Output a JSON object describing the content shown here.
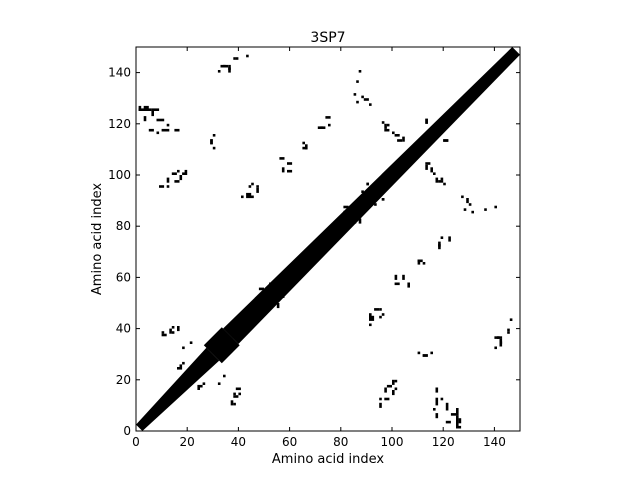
{
  "chart_data": {
    "type": "heatmap",
    "title": "3SP7",
    "xlabel": "Amino acid index",
    "ylabel": "Amino acid index",
    "xlim": [
      0,
      150
    ],
    "ylim": [
      0,
      150
    ],
    "xticks": [
      0,
      20,
      40,
      60,
      80,
      100,
      120,
      140
    ],
    "yticks": [
      0,
      20,
      40,
      60,
      80,
      100,
      120,
      140
    ],
    "grid": false,
    "colors": {
      "contact": "#000000",
      "background": "#ffffff"
    },
    "diagonal_band": [
      {
        "from": 0,
        "to": 30,
        "halfwidth": 2.5
      },
      {
        "from": 30,
        "to": 37,
        "halfwidth": 3.5
      },
      {
        "from": 37,
        "to": 150,
        "halfwidth": 3
      }
    ],
    "contacts": [
      [
        1,
        125,
        5,
        1
      ],
      [
        8,
        121,
        3,
        1
      ],
      [
        6,
        125,
        3,
        1
      ],
      [
        10,
        117,
        3,
        1
      ],
      [
        15,
        117,
        2,
        1
      ],
      [
        12,
        95,
        1,
        1
      ],
      [
        15,
        97,
        2,
        1
      ],
      [
        16,
        101,
        1,
        1
      ],
      [
        18,
        100,
        2,
        1
      ],
      [
        19,
        101,
        1,
        1
      ],
      [
        29,
        112,
        1,
        2
      ],
      [
        30,
        110,
        1,
        1
      ],
      [
        33,
        142,
        2,
        1
      ],
      [
        36,
        141,
        1,
        2
      ],
      [
        39,
        145,
        1,
        1
      ],
      [
        32,
        140,
        1,
        1
      ],
      [
        41,
        91,
        1,
        1
      ],
      [
        43,
        92,
        2,
        1
      ],
      [
        44,
        95,
        1,
        1
      ],
      [
        47,
        95,
        1,
        1
      ],
      [
        59,
        101,
        2,
        1
      ],
      [
        59,
        104,
        2,
        1
      ],
      [
        65,
        110,
        2,
        1
      ],
      [
        65,
        112,
        1,
        1
      ],
      [
        71,
        118,
        2,
        1
      ],
      [
        75,
        119,
        1,
        1
      ],
      [
        75,
        122,
        1,
        1
      ],
      [
        86,
        128,
        1,
        1
      ],
      [
        88,
        130,
        1,
        1
      ],
      [
        87,
        140,
        1,
        1
      ],
      [
        91,
        127,
        1,
        1
      ],
      [
        88,
        93,
        1,
        1
      ],
      [
        86,
        89,
        1,
        1
      ],
      [
        97,
        117,
        2,
        1
      ],
      [
        98,
        119,
        1,
        1
      ],
      [
        101,
        115,
        2,
        1
      ],
      [
        102,
        113,
        2,
        1
      ],
      [
        106,
        108,
        2,
        2
      ],
      [
        113,
        104,
        2,
        1
      ],
      [
        116,
        100,
        1,
        1
      ],
      [
        118,
        97,
        2,
        1
      ],
      [
        120,
        96,
        1,
        1
      ],
      [
        129,
        89,
        1,
        2
      ],
      [
        131,
        85,
        1,
        1
      ],
      [
        136,
        86,
        1,
        1
      ],
      [
        118,
        72,
        1,
        2
      ],
      [
        122,
        74,
        1,
        1
      ],
      [
        110,
        66,
        2,
        1
      ],
      [
        101,
        57,
        2,
        1
      ],
      [
        106,
        56,
        1,
        2
      ],
      [
        93,
        47,
        2,
        1
      ],
      [
        91,
        43,
        1,
        3
      ],
      [
        96,
        45,
        1,
        1
      ],
      [
        112,
        29,
        2,
        1
      ],
      [
        115,
        30,
        1,
        1
      ],
      [
        95,
        9,
        1,
        2
      ],
      [
        97,
        12,
        2,
        1
      ],
      [
        100,
        14,
        1,
        2
      ],
      [
        98,
        17,
        2,
        1
      ],
      [
        116,
        8,
        1,
        1
      ],
      [
        117,
        5,
        1,
        2
      ],
      [
        121,
        3,
        2,
        1
      ],
      [
        123,
        6,
        2,
        1
      ],
      [
        125,
        1,
        2,
        1
      ],
      [
        126,
        3,
        1,
        2
      ],
      [
        119,
        12,
        1,
        1
      ],
      [
        140,
        36,
        2,
        1
      ],
      [
        142,
        34,
        1,
        2
      ],
      [
        145,
        38,
        1,
        1
      ],
      [
        146,
        43,
        1,
        1
      ],
      [
        10,
        37,
        2,
        1
      ],
      [
        14,
        40,
        1,
        1
      ],
      [
        13,
        38,
        1,
        2
      ],
      [
        38,
        14,
        1,
        1
      ],
      [
        39,
        16,
        2,
        1
      ],
      [
        38,
        10,
        1,
        1
      ],
      [
        24,
        16,
        1,
        2
      ],
      [
        26,
        18,
        1,
        1
      ],
      [
        23,
        24,
        1,
        1
      ],
      [
        17,
        25,
        1,
        1
      ],
      [
        18,
        32,
        1,
        1
      ],
      [
        34,
        21,
        1,
        1
      ],
      [
        48,
        55,
        2,
        1
      ],
      [
        52,
        48,
        1,
        1
      ],
      [
        54,
        55,
        1,
        2
      ],
      [
        56,
        52,
        2,
        1
      ],
      [
        81,
        87,
        2,
        1
      ],
      [
        85,
        81,
        1,
        2
      ],
      [
        90,
        96,
        1,
        1
      ],
      [
        96,
        90,
        1,
        1
      ],
      [
        120,
        113,
        2,
        1
      ],
      [
        113,
        120,
        1,
        2
      ]
    ]
  }
}
